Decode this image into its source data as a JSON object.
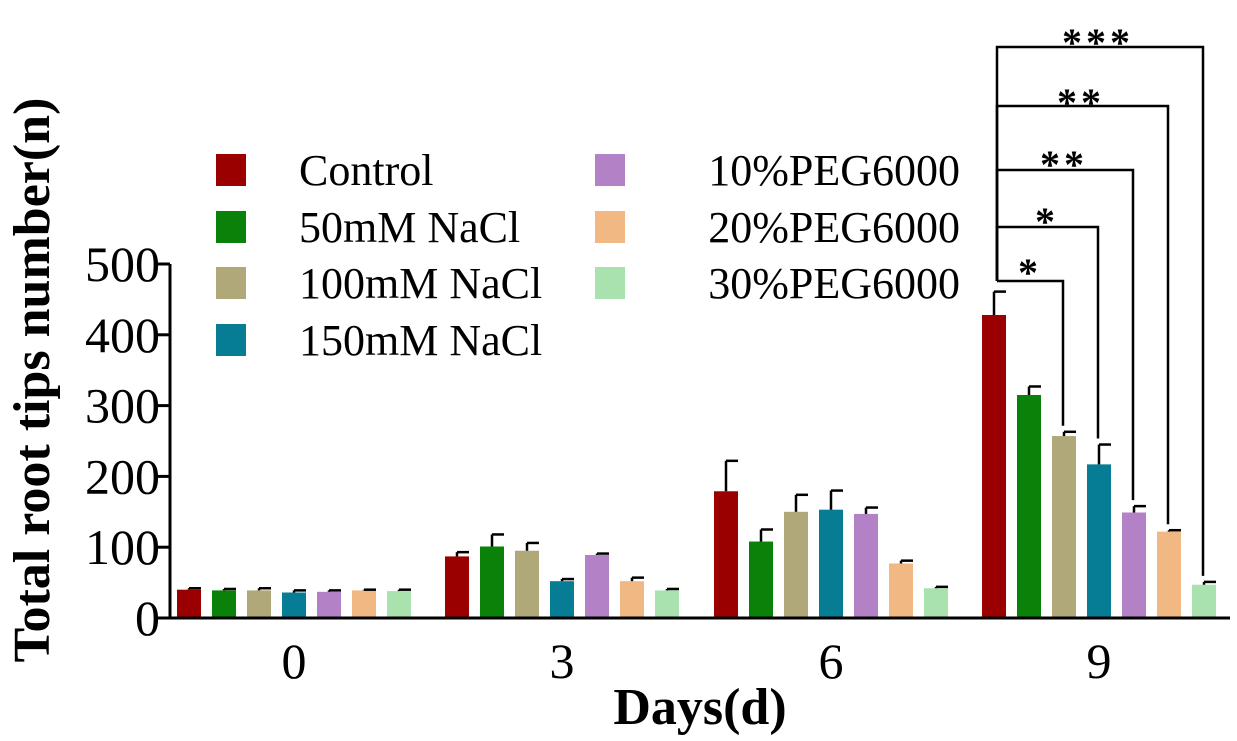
{
  "chart_data": {
    "type": "bar",
    "title": "",
    "xlabel": "Days(d)",
    "ylabel": "Total root tips number(n)",
    "ylim": [
      0,
      500
    ],
    "yticks": [
      0,
      100,
      200,
      300,
      400,
      500
    ],
    "categories": [
      "0",
      "3",
      "6",
      "9"
    ],
    "legend_position": "top-left",
    "series": [
      {
        "name": "Control",
        "color": "#9b0000",
        "values": [
          40,
          87,
          179,
          428
        ],
        "errors": [
          2,
          6,
          43,
          33
        ]
      },
      {
        "name": "50mM NaCl",
        "color": "#0a820a",
        "values": [
          39,
          101,
          108,
          315
        ],
        "errors": [
          2,
          17,
          17,
          12
        ]
      },
      {
        "name": "100mM NaCl",
        "color": "#b1a87a",
        "values": [
          39,
          95,
          150,
          257
        ],
        "errors": [
          3,
          11,
          24,
          6
        ]
      },
      {
        "name": "150mM NaCl",
        "color": "#067d94",
        "values": [
          36,
          52,
          153,
          217
        ],
        "errors": [
          3,
          3,
          27,
          28
        ]
      },
      {
        "name": "10%PEG6000",
        "color": "#b381c6",
        "values": [
          37,
          89,
          147,
          149
        ],
        "errors": [
          2,
          2,
          9,
          9
        ]
      },
      {
        "name": "20%PEG6000",
        "color": "#f1b883",
        "values": [
          39,
          52,
          77,
          122
        ],
        "errors": [
          1,
          5,
          4,
          2
        ]
      },
      {
        "name": "30%PEG6000",
        "color": "#a9e2ae",
        "values": [
          38,
          39,
          42,
          47
        ],
        "errors": [
          2,
          2,
          2,
          4
        ]
      }
    ],
    "significance": [
      {
        "category": "9",
        "from": "Control",
        "to": "100mM NaCl",
        "label": "*"
      },
      {
        "category": "9",
        "from": "Control",
        "to": "150mM NaCl",
        "label": "*"
      },
      {
        "category": "9",
        "from": "Control",
        "to": "10%PEG6000",
        "label": "**"
      },
      {
        "category": "9",
        "from": "Control",
        "to": "20%PEG6000",
        "label": "**"
      },
      {
        "category": "9",
        "from": "Control",
        "to": "30%PEG6000",
        "label": "***"
      }
    ]
  }
}
